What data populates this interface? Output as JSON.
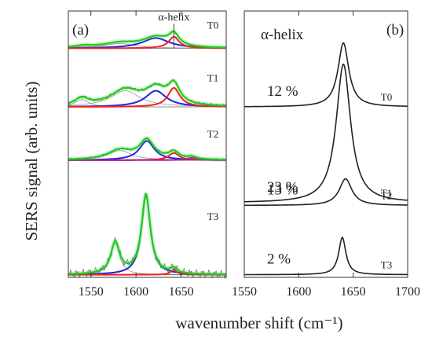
{
  "figure": {
    "ylabel": "SERS signal (arb. units)",
    "xlabel": "wavenumber shift (cm⁻¹)"
  },
  "chart_data": [
    {
      "type": "line",
      "panel_label": "(a)",
      "xlim": [
        1525,
        1700
      ],
      "x_ticks": [
        1550,
        1600,
        1650
      ],
      "annotation": {
        "text": "α-helix",
        "x": 1642
      },
      "grid": false,
      "colors": {
        "envelope": "#22cc22",
        "raw": "#555555",
        "band_1610": "#2222dd",
        "band_1642": "#ee2222",
        "band_other": "#999999",
        "band_1650": "#aa22aa"
      },
      "traces": [
        {
          "label": "T0",
          "baseline": 0.86,
          "amplitude": 0.07,
          "bands": [
            {
              "center": 1542,
              "width": 12,
              "height": 0.1,
              "role": "band_other"
            },
            {
              "center": 1582,
              "width": 22,
              "height": 0.25,
              "role": "band_other"
            },
            {
              "center": 1622,
              "width": 18,
              "height": 0.55,
              "role": "band_1610"
            },
            {
              "center": 1642,
              "width": 7,
              "height": 0.62,
              "role": "band_1642"
            }
          ]
        },
        {
          "label": "T1",
          "baseline": 0.64,
          "amplitude": 0.11,
          "bands": [
            {
              "center": 1540,
              "width": 9,
              "height": 0.25,
              "role": "band_other"
            },
            {
              "center": 1588,
              "width": 20,
              "height": 0.55,
              "role": "band_other"
            },
            {
              "center": 1622,
              "width": 14,
              "height": 0.55,
              "role": "band_1610"
            },
            {
              "center": 1642,
              "width": 8,
              "height": 0.65,
              "role": "band_1642"
            }
          ]
        },
        {
          "label": "T2",
          "baseline": 0.44,
          "amplitude": 0.09,
          "bands": [
            {
              "center": 1582,
              "width": 16,
              "height": 0.4,
              "role": "band_other"
            },
            {
              "center": 1612,
              "width": 10,
              "height": 0.8,
              "role": "band_1610"
            },
            {
              "center": 1642,
              "width": 7,
              "height": 0.3,
              "role": "band_1642"
            },
            {
              "center": 1662,
              "width": 6,
              "height": 0.1,
              "role": "band_1650"
            }
          ]
        },
        {
          "label": "T3",
          "baseline": 0.01,
          "amplitude": 0.31,
          "bands": [
            {
              "center": 1577,
              "width": 6,
              "height": 0.38,
              "role": "band_other"
            },
            {
              "center": 1611,
              "width": 6,
              "height": 0.96,
              "role": "band_1610"
            },
            {
              "center": 1642,
              "width": 4,
              "height": 0.06,
              "role": "band_1642"
            }
          ]
        }
      ]
    },
    {
      "type": "line",
      "panel_label": "(b)",
      "title": "α-helix",
      "xlim": [
        1550,
        1700
      ],
      "x_ticks": [
        1550,
        1600,
        1650,
        1700
      ],
      "grid": false,
      "color": "#222222",
      "traces": [
        {
          "label": "T0",
          "percent": "12 %",
          "center": 1641,
          "width": 6,
          "baseline": 0.64,
          "peak": 0.88
        },
        {
          "label": "T1",
          "percent": "23 %",
          "center": 1641,
          "width": 8,
          "baseline": 0.28,
          "peak": 0.8
        },
        {
          "label": "T2",
          "percent": "13 %",
          "center": 1643,
          "width": 7,
          "baseline": 0.27,
          "peak": 0.37
        },
        {
          "label": "T3",
          "percent": "2 %",
          "center": 1640,
          "width": 4,
          "baseline": 0.01,
          "peak": 0.15
        }
      ]
    }
  ]
}
